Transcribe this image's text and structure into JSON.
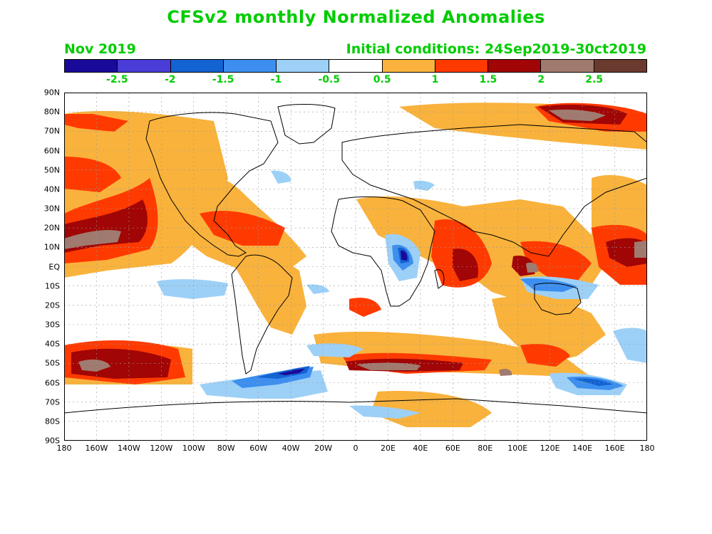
{
  "title": "CFSv2 monthly Normalized Anomalies",
  "month": "Nov 2019",
  "initial_conditions": "Initial conditions: 24Sep2019-30ct2019",
  "colorbar": {
    "colors": [
      "#1a0a9a",
      "#4a3cd6",
      "#1463d2",
      "#3c8ff0",
      "#9dd0f7",
      "#ffffff",
      "#f9b23c",
      "#ff3a00",
      "#a10505",
      "#a07a6e",
      "#6b3a2e"
    ],
    "labels": [
      "-2.5",
      "-2",
      "-1.5",
      "-1",
      "-0.5",
      "0.5",
      "1",
      "1.5",
      "2",
      "2.5"
    ]
  },
  "axes": {
    "lat_labels": [
      "90N",
      "80N",
      "70N",
      "60N",
      "50N",
      "40N",
      "30N",
      "20N",
      "10N",
      "EQ",
      "10S",
      "20S",
      "30S",
      "40S",
      "50S",
      "60S",
      "70S",
      "80S",
      "90S"
    ],
    "lon_labels": [
      "180",
      "160W",
      "140W",
      "120W",
      "100W",
      "80W",
      "60W",
      "40W",
      "20W",
      "0",
      "20E",
      "40E",
      "60E",
      "80E",
      "100E",
      "120E",
      "140E",
      "160E",
      "180"
    ]
  }
}
